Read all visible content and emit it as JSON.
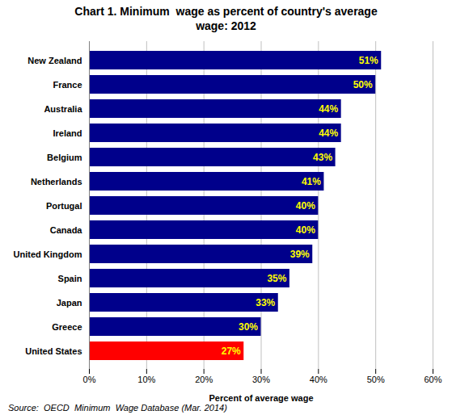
{
  "chart_data": {
    "type": "bar",
    "orientation": "horizontal",
    "title": "Chart 1. Minimum  wage as percent of country's average\nwage: 2012",
    "xlabel": "Percent of average wage",
    "source": "Source:  OECD  Minimum  Wage Database (Mar. 2014)",
    "categories": [
      "New Zealand",
      "France",
      "Australia",
      "Ireland",
      "Belgium",
      "Netherlands",
      "Portugal",
      "Canada",
      "United Kingdom",
      "Spain",
      "Japan",
      "Greece",
      "United States"
    ],
    "values": [
      51,
      50,
      44,
      44,
      43,
      41,
      40,
      40,
      39,
      35,
      33,
      30,
      27
    ],
    "value_labels": [
      "51%",
      "50%",
      "44%",
      "44%",
      "43%",
      "41%",
      "40%",
      "40%",
      "39%",
      "35%",
      "33%",
      "30%",
      "27%"
    ],
    "data_labels": true,
    "colors": [
      "#00008B",
      "#00008B",
      "#00008B",
      "#00008B",
      "#00008B",
      "#00008B",
      "#00008B",
      "#00008B",
      "#00008B",
      "#00008B",
      "#00008B",
      "#00008B",
      "#FF0000"
    ],
    "xlim": [
      0,
      60
    ],
    "xticks": [
      {
        "value": 0,
        "label": "0%"
      },
      {
        "value": 10,
        "label": "10%"
      },
      {
        "value": 20,
        "label": "20%"
      },
      {
        "value": 30,
        "label": "30%"
      },
      {
        "value": 40,
        "label": "40%"
      },
      {
        "value": 50,
        "label": "50%"
      },
      {
        "value": 60,
        "label": "60%"
      }
    ],
    "grid": true
  }
}
